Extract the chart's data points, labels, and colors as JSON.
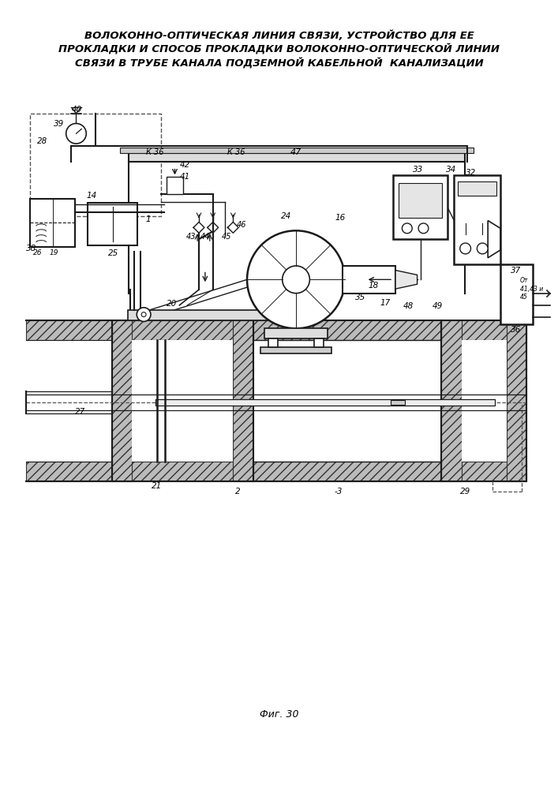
{
  "title_line1": "ВОЛОКОННО-ОПТИЧЕСКАЯ ЛИНИЯ СВЯЗИ, УСТРОЙСТВО ДЛЯ ЕЕ",
  "title_line2": "ПРОКЛАДКИ И СПОСОБ ПРОКЛАДКИ ВОЛОКОННО-ОПТИЧЕСКОЙ ЛИНИИ",
  "title_line3": "СВЯЗИ В ТРУБЕ КАНАЛА ПОДЗЕМНОЙ КАБЕЛЬНОЙ  КАНАЛИЗАЦИИ",
  "fig_label": "Фиг. 30",
  "bg_color": "#ffffff",
  "lc": "#1a1a1a",
  "hatch_fc": "#c0c0c0",
  "hatch_pattern": "///"
}
